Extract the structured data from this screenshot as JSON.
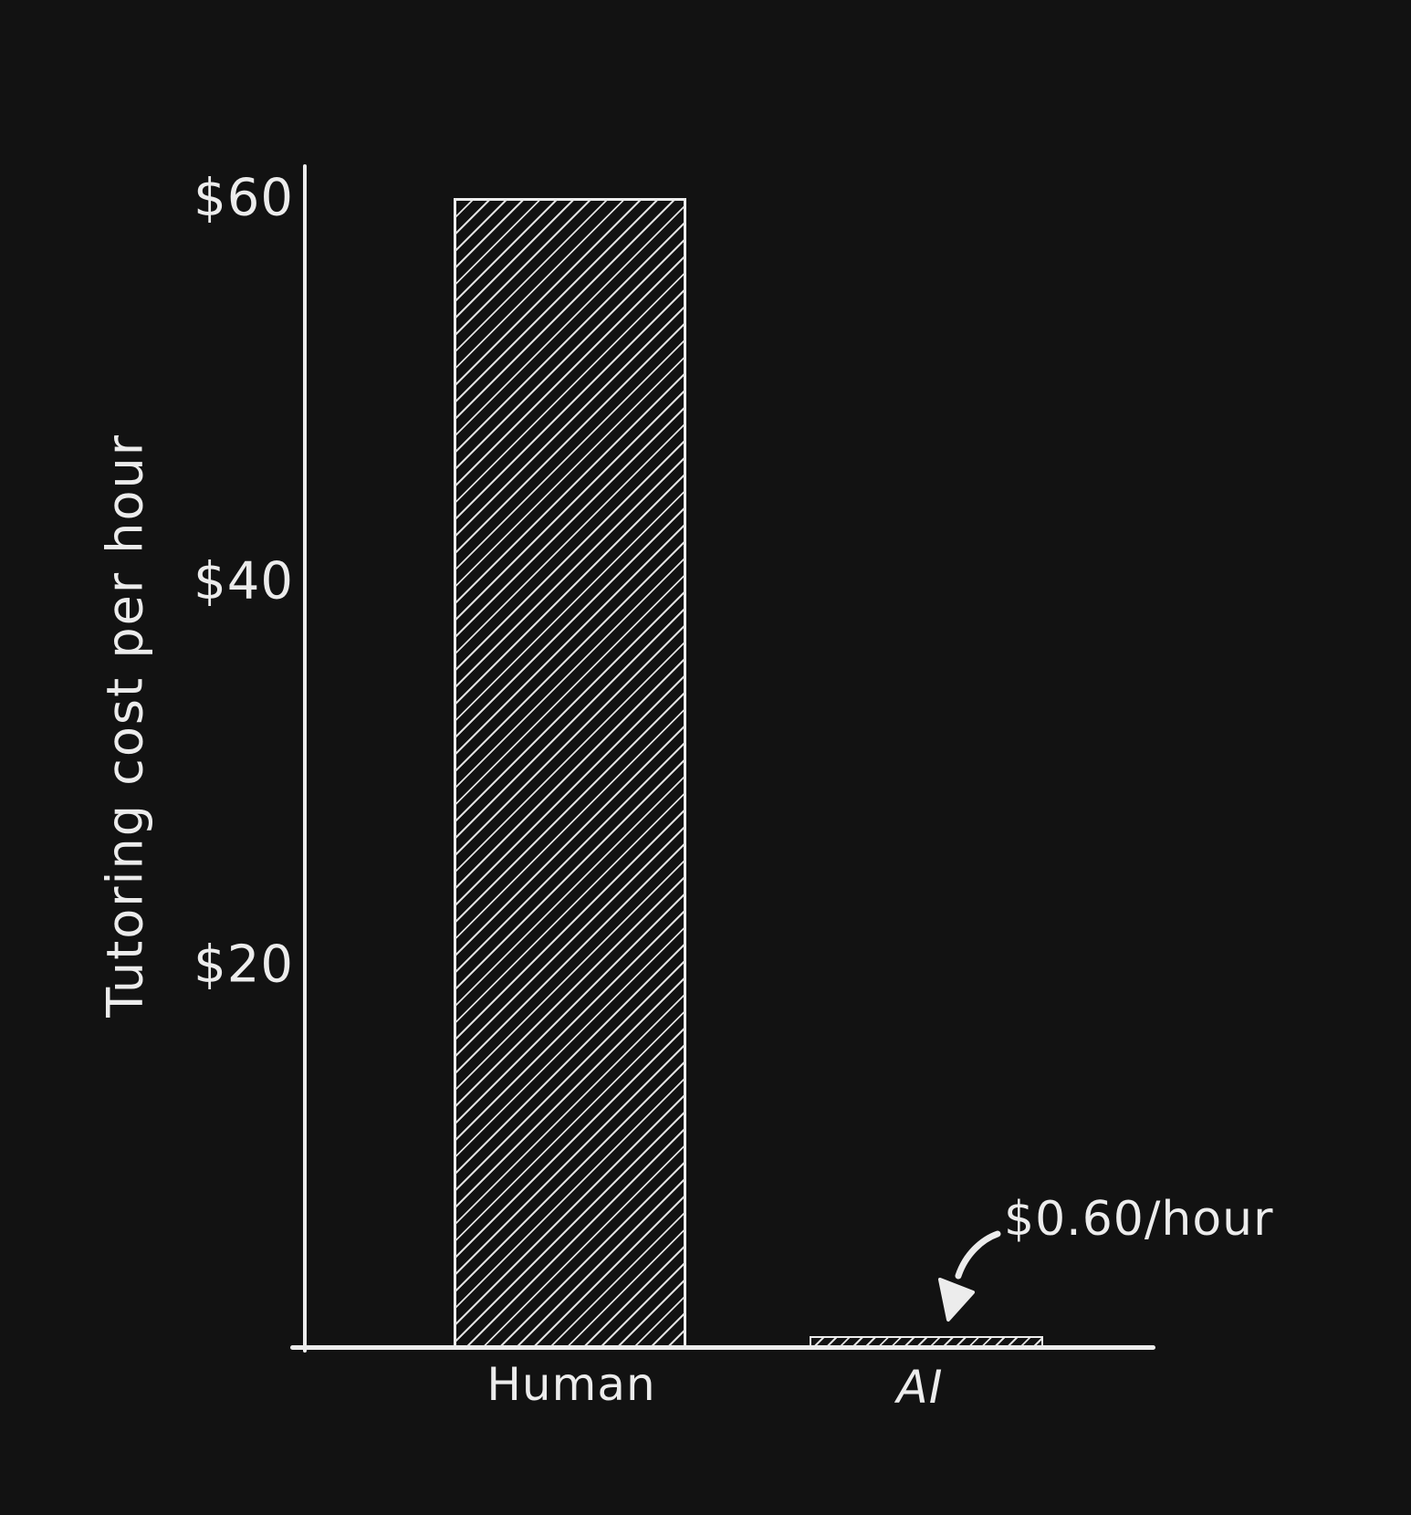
{
  "figure": {
    "background": "#121212",
    "ink_color": "#ececec"
  },
  "chart_data": {
    "type": "bar",
    "categories": [
      "Human",
      "AI"
    ],
    "values": [
      60,
      0.6
    ],
    "title": "",
    "xlabel": "",
    "ylabel": "Tutoring cost per hour",
    "ylim": [
      0,
      60
    ],
    "yticks": [
      {
        "value": 60,
        "label": "$60"
      },
      {
        "value": 40,
        "label": "$40"
      },
      {
        "value": 20,
        "label": "$20"
      }
    ],
    "grid": false,
    "legend": false,
    "bar_style": "diagonal-hatch",
    "annotations": [
      {
        "text": "$0.60/hour",
        "points_to": "AI"
      }
    ]
  }
}
